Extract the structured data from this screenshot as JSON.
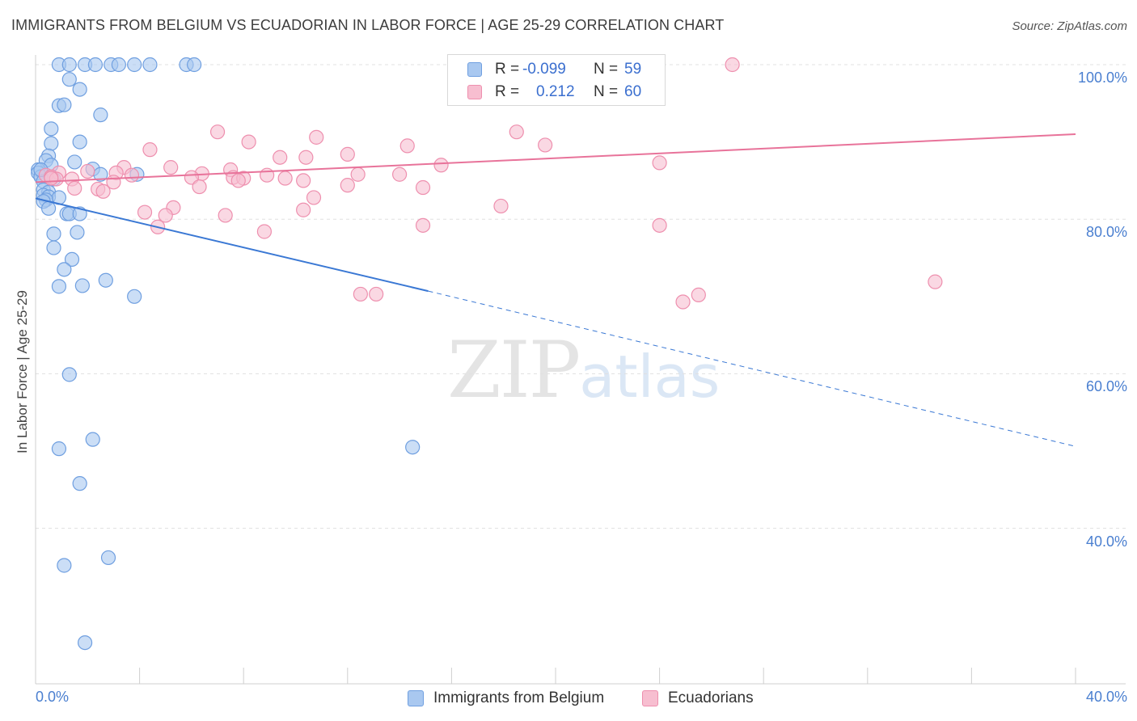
{
  "header": {
    "title": "IMMIGRANTS FROM BELGIUM VS ECUADORIAN IN LABOR FORCE | AGE 25-29 CORRELATION CHART",
    "source": "Source: ZipAtlas.com"
  },
  "watermark": {
    "zip": "ZIP",
    "atlas": "atlas"
  },
  "colors": {
    "blue_fill": "#a9c8f0",
    "blue_stroke": "#6f9fe0",
    "blue_line": "#3a78d4",
    "pink_fill": "#f7bed0",
    "pink_stroke": "#ee8fae",
    "pink_line": "#e8739a",
    "grid": "#e0e0e0",
    "tick_label": "#4a7fd0"
  },
  "legend": {
    "series": [
      {
        "r_label": "R =",
        "r_value": "-0.099",
        "n_label": "N =",
        "n_value": "59"
      },
      {
        "r_label": "R =",
        "r_value": "0.212",
        "n_label": "N =",
        "n_value": "60"
      }
    ]
  },
  "chart_data": {
    "type": "scatter",
    "title": "IMMIGRANTS FROM BELGIUM VS ECUADORIAN IN LABOR FORCE | AGE 25-29 CORRELATION CHART",
    "xlabel": "",
    "ylabel": "In Labor Force | Age 25-29",
    "xlim": [
      0,
      40
    ],
    "ylim": [
      22,
      102
    ],
    "x_tick_labels": [
      "0.0%",
      "40.0%"
    ],
    "y_tick_labels": [
      "100.0%",
      "80.0%",
      "60.0%",
      "40.0%"
    ],
    "y_ticks": [
      100,
      80,
      60,
      40
    ],
    "grid": true,
    "legend_position": "top-center",
    "series": [
      {
        "name": "Immigrants from Belgium",
        "color": "#a9c8f0",
        "points": [
          [
            0.9,
            100
          ],
          [
            1.3,
            100
          ],
          [
            1.9,
            100
          ],
          [
            2.3,
            100
          ],
          [
            2.9,
            100
          ],
          [
            3.2,
            100
          ],
          [
            3.8,
            100
          ],
          [
            4.4,
            100
          ],
          [
            5.8,
            100
          ],
          [
            6.1,
            100
          ],
          [
            1.3,
            98.1
          ],
          [
            1.7,
            96.8
          ],
          [
            0.9,
            94.7
          ],
          [
            1.1,
            94.8
          ],
          [
            2.5,
            93.5
          ],
          [
            0.6,
            91.7
          ],
          [
            1.7,
            90.0
          ],
          [
            0.6,
            89.8
          ],
          [
            0.5,
            88.2
          ],
          [
            0.4,
            87.6
          ],
          [
            1.5,
            87.4
          ],
          [
            0.1,
            86.4
          ],
          [
            0.6,
            87.0
          ],
          [
            0.1,
            86.0
          ],
          [
            0.2,
            85.5
          ],
          [
            2.2,
            86.5
          ],
          [
            2.5,
            85.8
          ],
          [
            3.9,
            85.8
          ],
          [
            0.3,
            84.9
          ],
          [
            0.7,
            85.2
          ],
          [
            0.3,
            83.8
          ],
          [
            0.5,
            83.5
          ],
          [
            0.3,
            83.1
          ],
          [
            0.5,
            82.9
          ],
          [
            0.9,
            82.8
          ],
          [
            0.4,
            82.5
          ],
          [
            0.3,
            82.3
          ],
          [
            0.5,
            81.4
          ],
          [
            1.2,
            80.7
          ],
          [
            1.3,
            80.7
          ],
          [
            1.7,
            80.7
          ],
          [
            0.7,
            78.1
          ],
          [
            1.6,
            78.3
          ],
          [
            0.7,
            76.3
          ],
          [
            1.4,
            74.8
          ],
          [
            1.1,
            73.5
          ],
          [
            2.7,
            72.1
          ],
          [
            0.9,
            71.3
          ],
          [
            1.8,
            71.4
          ],
          [
            3.8,
            70.0
          ],
          [
            1.3,
            59.9
          ],
          [
            0.9,
            50.3
          ],
          [
            2.2,
            51.5
          ],
          [
            14.5,
            50.5
          ],
          [
            1.7,
            45.8
          ],
          [
            2.8,
            36.2
          ],
          [
            1.1,
            35.2
          ],
          [
            1.9,
            25.2
          ],
          [
            0.2,
            86.4
          ]
        ]
      },
      {
        "name": "Ecuadorians",
        "color": "#f7bed0",
        "points": [
          [
            18.6,
            100
          ],
          [
            22.5,
            100
          ],
          [
            26.8,
            100
          ],
          [
            7.0,
            91.3
          ],
          [
            10.8,
            90.6
          ],
          [
            18.5,
            91.3
          ],
          [
            8.2,
            90.0
          ],
          [
            14.3,
            89.5
          ],
          [
            19.6,
            89.6
          ],
          [
            4.4,
            89.0
          ],
          [
            12.0,
            88.4
          ],
          [
            9.4,
            88.0
          ],
          [
            10.4,
            88.0
          ],
          [
            24.0,
            87.3
          ],
          [
            15.6,
            87.0
          ],
          [
            5.2,
            86.7
          ],
          [
            3.4,
            86.7
          ],
          [
            7.5,
            86.4
          ],
          [
            2.0,
            86.2
          ],
          [
            3.1,
            86.0
          ],
          [
            0.9,
            86.0
          ],
          [
            6.4,
            85.9
          ],
          [
            8.9,
            85.7
          ],
          [
            12.4,
            85.8
          ],
          [
            14.0,
            85.8
          ],
          [
            3.7,
            85.7
          ],
          [
            0.4,
            85.7
          ],
          [
            0.6,
            85.5
          ],
          [
            6.0,
            85.4
          ],
          [
            7.6,
            85.4
          ],
          [
            8.0,
            85.3
          ],
          [
            9.6,
            85.3
          ],
          [
            1.4,
            85.2
          ],
          [
            0.8,
            85.2
          ],
          [
            0.6,
            85.3
          ],
          [
            10.3,
            85.0
          ],
          [
            3.0,
            84.8
          ],
          [
            12.0,
            84.4
          ],
          [
            6.3,
            84.2
          ],
          [
            14.9,
            84.1
          ],
          [
            1.5,
            84.0
          ],
          [
            2.4,
            83.9
          ],
          [
            2.6,
            83.6
          ],
          [
            10.7,
            82.8
          ],
          [
            5.3,
            81.5
          ],
          [
            17.9,
            81.7
          ],
          [
            10.3,
            81.2
          ],
          [
            4.2,
            80.9
          ],
          [
            5.0,
            80.5
          ],
          [
            7.3,
            80.5
          ],
          [
            14.9,
            79.2
          ],
          [
            24.0,
            79.2
          ],
          [
            4.7,
            79.0
          ],
          [
            8.8,
            78.4
          ],
          [
            34.6,
            71.9
          ],
          [
            13.1,
            70.3
          ],
          [
            24.9,
            69.3
          ],
          [
            25.5,
            70.2
          ],
          [
            12.5,
            70.3
          ],
          [
            7.8,
            85.0
          ]
        ]
      }
    ],
    "trend_lines": [
      {
        "series": "Immigrants from Belgium",
        "solid": [
          [
            0,
            82.7
          ],
          [
            15.1,
            70.7
          ]
        ],
        "dashed": [
          [
            15.1,
            70.7
          ],
          [
            40,
            50.6
          ]
        ]
      },
      {
        "series": "Ecuadorians",
        "solid": [
          [
            0,
            84.8
          ],
          [
            40,
            91.0
          ]
        ]
      }
    ]
  }
}
